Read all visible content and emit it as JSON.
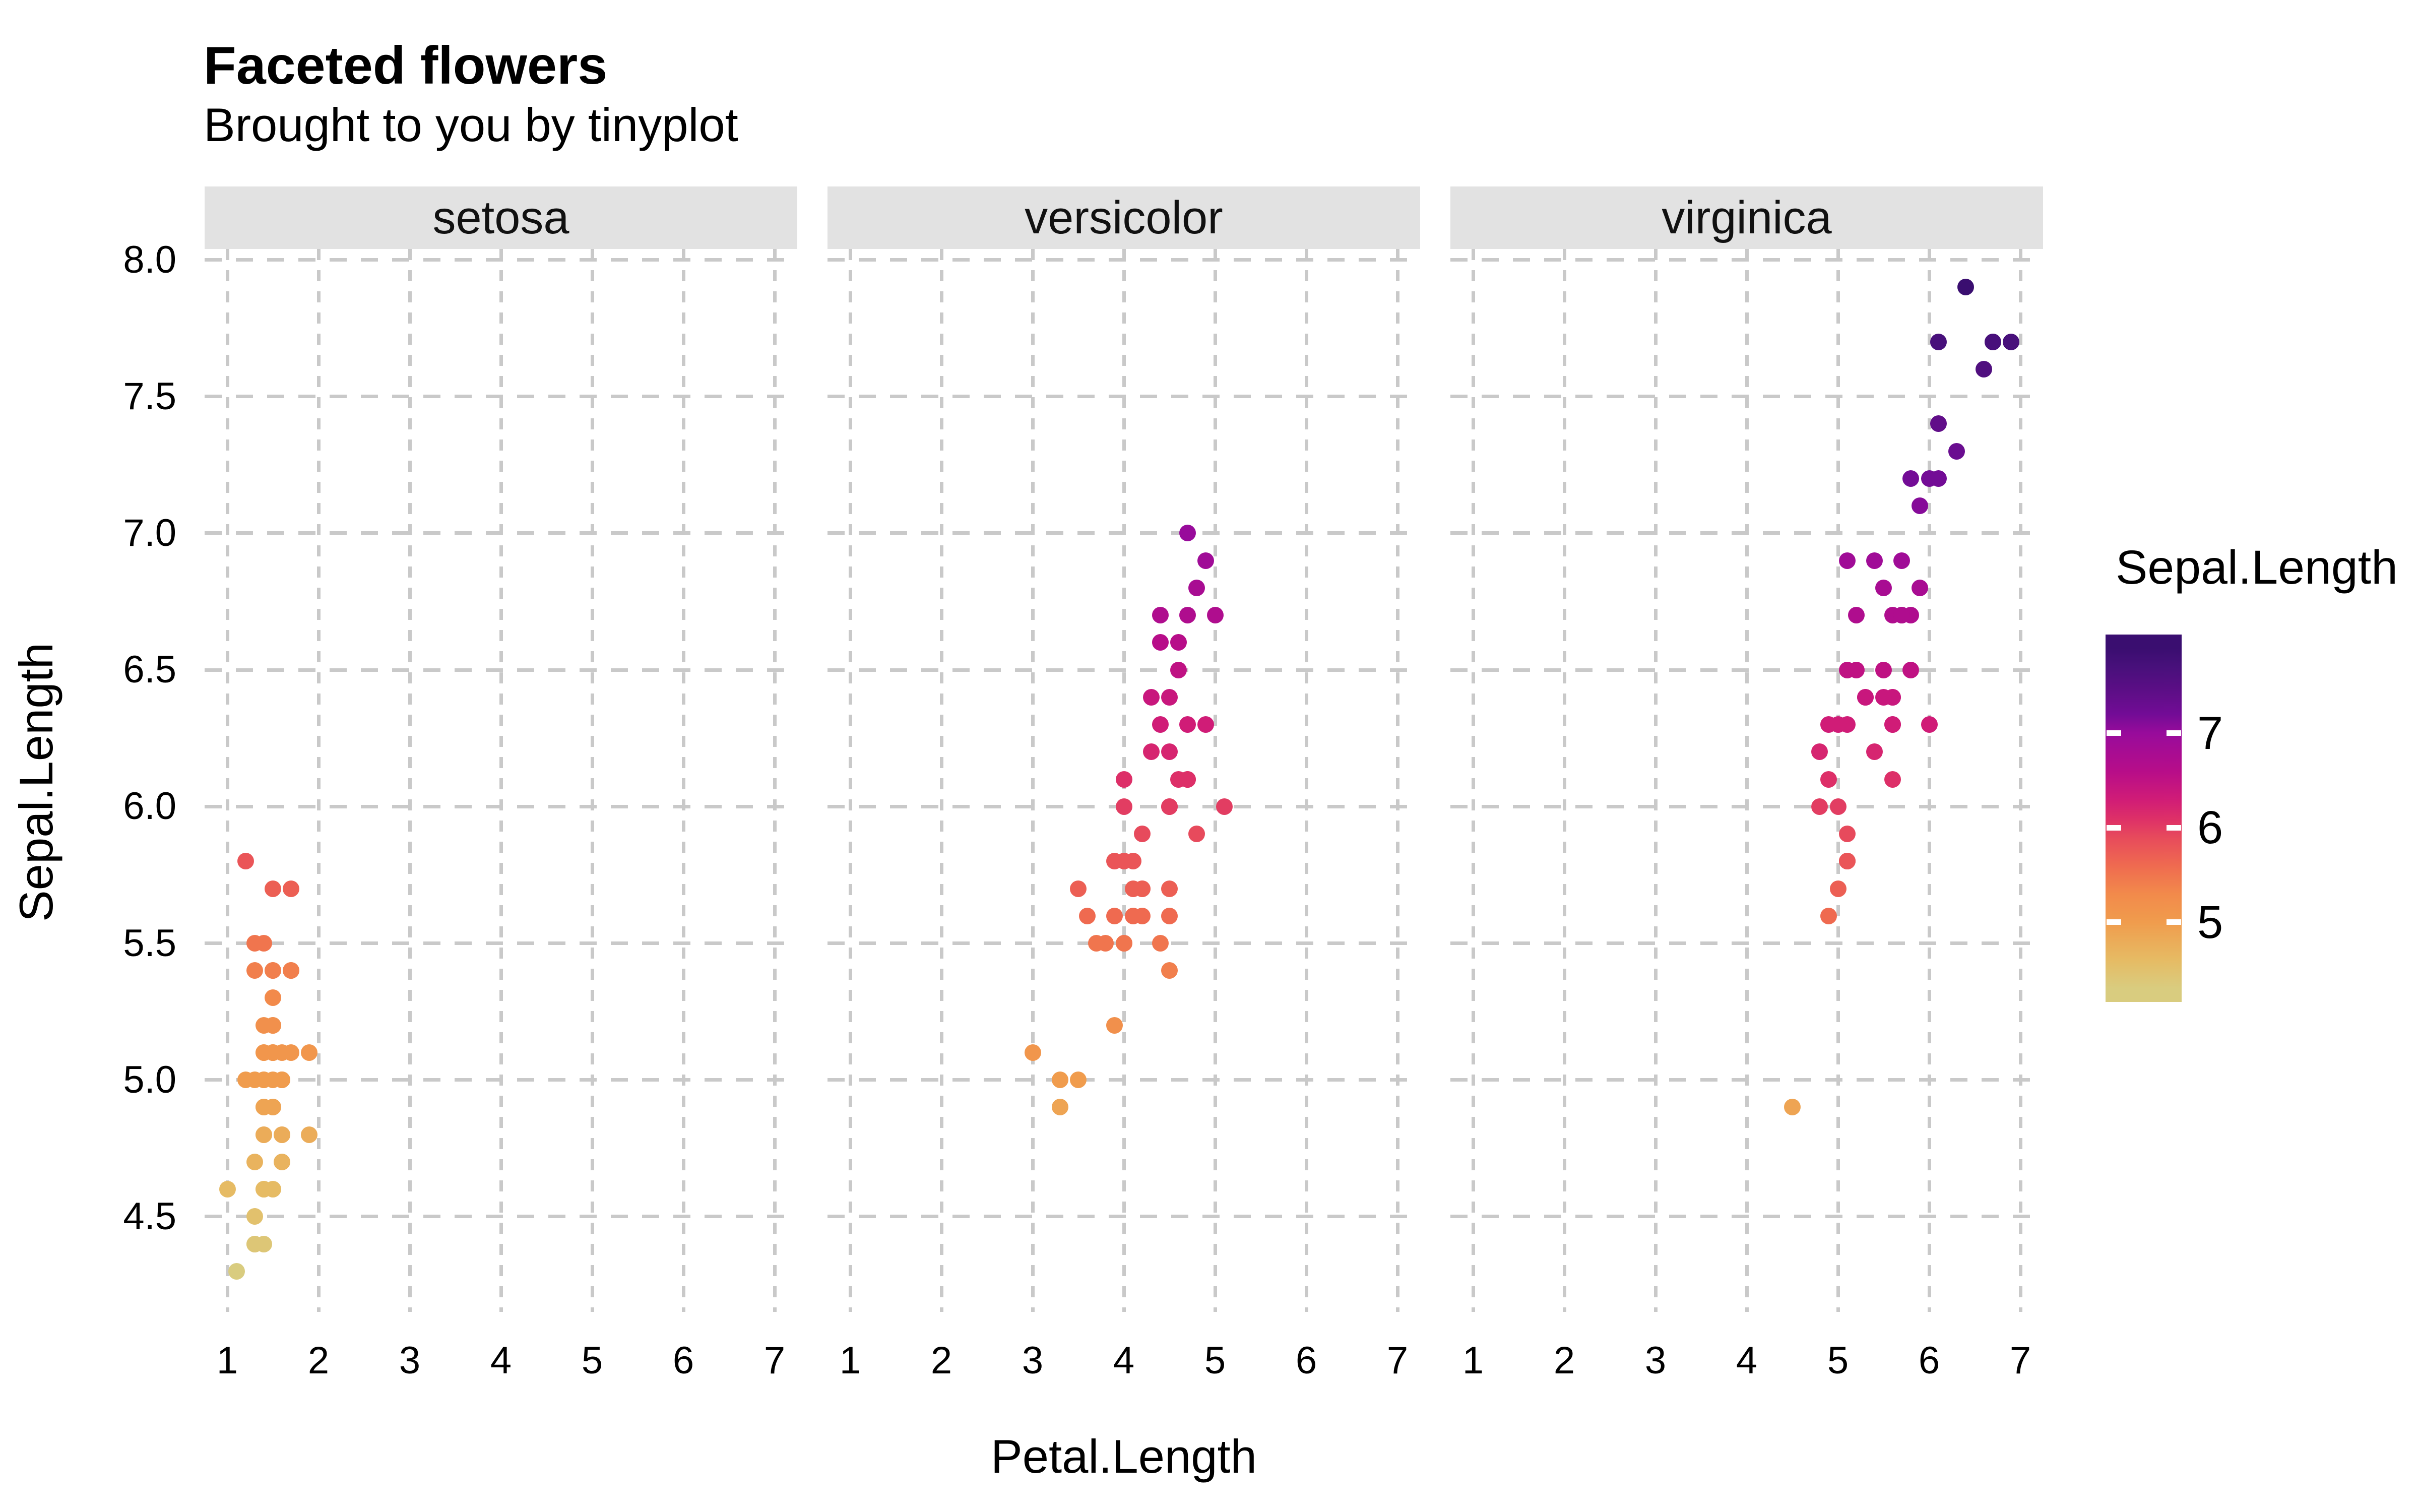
{
  "chart_data": {
    "type": "scatter",
    "title": "Faceted flowers",
    "subtitle": "Brought to you by tinyplot",
    "xlabel": "Petal.Length",
    "ylabel": "Sepal.Length",
    "facets": [
      "setosa",
      "versicolor",
      "virginica"
    ],
    "x_ticks": [
      1,
      2,
      3,
      4,
      5,
      6,
      7
    ],
    "y_ticks": [
      4.5,
      5.0,
      5.5,
      6.0,
      6.5,
      7.0,
      7.5,
      8.0
    ],
    "x_domain": [
      0.75,
      7.25
    ],
    "y_domain": [
      4.156,
      8.044
    ],
    "grid": true,
    "legend": {
      "title": "Sepal.Length",
      "ticks": [
        7,
        6,
        5
      ],
      "position": "right",
      "bar_range": [
        4.156,
        8.044
      ]
    },
    "colors": {
      "background": "#ffffff",
      "grid": "#c9c9c9",
      "strip_bg": "#e2e2e2",
      "text": "#000000"
    },
    "colormap": [
      [
        4.3,
        "#d9cc7f"
      ],
      [
        4.6,
        "#e6bb64"
      ],
      [
        5.0,
        "#f09c4d"
      ],
      [
        5.3,
        "#f28a4b"
      ],
      [
        5.6,
        "#ef6a50"
      ],
      [
        5.9,
        "#e74a5c"
      ],
      [
        6.1,
        "#dd2f68"
      ],
      [
        6.3,
        "#d01c77"
      ],
      [
        6.6,
        "#b70d89"
      ],
      [
        6.9,
        "#a00c97"
      ],
      [
        7.0,
        "#980b9b"
      ],
      [
        7.2,
        "#730c96"
      ],
      [
        7.45,
        "#5c0e86"
      ],
      [
        7.7,
        "#48107b"
      ],
      [
        7.9,
        "#3a0e70"
      ]
    ],
    "series": [
      {
        "name": "setosa",
        "points": [
          [
            1.4,
            5.1
          ],
          [
            1.4,
            4.9
          ],
          [
            1.3,
            4.7
          ],
          [
            1.5,
            4.6
          ],
          [
            1.4,
            5.0
          ],
          [
            1.7,
            5.4
          ],
          [
            1.4,
            4.6
          ],
          [
            1.5,
            5.0
          ],
          [
            1.4,
            4.4
          ],
          [
            1.5,
            4.9
          ],
          [
            1.5,
            5.4
          ],
          [
            1.6,
            4.8
          ],
          [
            1.4,
            4.8
          ],
          [
            1.1,
            4.3
          ],
          [
            1.2,
            5.8
          ],
          [
            1.5,
            5.7
          ],
          [
            1.3,
            5.4
          ],
          [
            1.4,
            5.1
          ],
          [
            1.7,
            5.7
          ],
          [
            1.5,
            5.1
          ],
          [
            1.7,
            5.4
          ],
          [
            1.5,
            5.1
          ],
          [
            1.0,
            4.6
          ],
          [
            1.7,
            5.1
          ],
          [
            1.9,
            4.8
          ],
          [
            1.6,
            5.0
          ],
          [
            1.6,
            5.0
          ],
          [
            1.5,
            5.2
          ],
          [
            1.4,
            5.2
          ],
          [
            1.6,
            4.7
          ],
          [
            1.6,
            4.8
          ],
          [
            1.5,
            5.4
          ],
          [
            1.5,
            5.2
          ],
          [
            1.4,
            5.5
          ],
          [
            1.5,
            4.9
          ],
          [
            1.2,
            5.0
          ],
          [
            1.3,
            5.5
          ],
          [
            1.4,
            4.9
          ],
          [
            1.3,
            4.4
          ],
          [
            1.5,
            5.1
          ],
          [
            1.3,
            5.0
          ],
          [
            1.3,
            4.5
          ],
          [
            1.3,
            4.4
          ],
          [
            1.6,
            5.0
          ],
          [
            1.9,
            5.1
          ],
          [
            1.4,
            4.8
          ],
          [
            1.6,
            5.1
          ],
          [
            1.4,
            4.6
          ],
          [
            1.5,
            5.3
          ],
          [
            1.4,
            5.0
          ]
        ]
      },
      {
        "name": "versicolor",
        "points": [
          [
            4.7,
            7.0
          ],
          [
            4.5,
            6.4
          ],
          [
            4.9,
            6.9
          ],
          [
            4.0,
            5.5
          ],
          [
            4.6,
            6.5
          ],
          [
            4.5,
            5.7
          ],
          [
            4.7,
            6.3
          ],
          [
            3.3,
            4.9
          ],
          [
            4.6,
            6.6
          ],
          [
            3.9,
            5.2
          ],
          [
            3.5,
            5.0
          ],
          [
            4.2,
            5.9
          ],
          [
            4.0,
            6.0
          ],
          [
            4.7,
            6.1
          ],
          [
            3.6,
            5.6
          ],
          [
            4.4,
            6.7
          ],
          [
            4.5,
            5.6
          ],
          [
            4.1,
            5.8
          ],
          [
            4.5,
            6.2
          ],
          [
            3.9,
            5.6
          ],
          [
            4.8,
            5.9
          ],
          [
            4.0,
            6.1
          ],
          [
            4.9,
            6.3
          ],
          [
            4.7,
            6.1
          ],
          [
            4.3,
            6.4
          ],
          [
            4.4,
            6.6
          ],
          [
            4.8,
            6.8
          ],
          [
            5.0,
            6.7
          ],
          [
            4.5,
            6.0
          ],
          [
            3.5,
            5.7
          ],
          [
            3.8,
            5.5
          ],
          [
            3.7,
            5.5
          ],
          [
            3.9,
            5.8
          ],
          [
            5.1,
            6.0
          ],
          [
            4.5,
            5.4
          ],
          [
            4.5,
            6.0
          ],
          [
            4.7,
            6.7
          ],
          [
            4.4,
            6.3
          ],
          [
            4.1,
            5.6
          ],
          [
            4.0,
            5.5
          ],
          [
            4.4,
            5.5
          ],
          [
            4.6,
            6.1
          ],
          [
            4.0,
            5.8
          ],
          [
            3.3,
            5.0
          ],
          [
            4.2,
            5.6
          ],
          [
            4.2,
            5.7
          ],
          [
            4.2,
            5.7
          ],
          [
            4.3,
            6.2
          ],
          [
            3.0,
            5.1
          ],
          [
            4.1,
            5.7
          ]
        ]
      },
      {
        "name": "virginica",
        "points": [
          [
            6.0,
            6.3
          ],
          [
            5.1,
            5.8
          ],
          [
            5.9,
            7.1
          ],
          [
            5.6,
            6.3
          ],
          [
            5.8,
            6.5
          ],
          [
            6.6,
            7.6
          ],
          [
            4.5,
            4.9
          ],
          [
            6.3,
            7.3
          ],
          [
            5.8,
            6.7
          ],
          [
            6.1,
            7.2
          ],
          [
            5.1,
            6.5
          ],
          [
            5.3,
            6.4
          ],
          [
            5.5,
            6.8
          ],
          [
            5.0,
            5.7
          ],
          [
            5.1,
            5.8
          ],
          [
            5.3,
            6.4
          ],
          [
            5.5,
            6.5
          ],
          [
            6.7,
            7.7
          ],
          [
            6.9,
            7.7
          ],
          [
            5.0,
            6.0
          ],
          [
            5.7,
            6.9
          ],
          [
            4.9,
            5.6
          ],
          [
            6.7,
            7.7
          ],
          [
            4.9,
            6.3
          ],
          [
            5.7,
            6.7
          ],
          [
            6.0,
            7.2
          ],
          [
            4.8,
            6.2
          ],
          [
            4.9,
            6.1
          ],
          [
            5.6,
            6.4
          ],
          [
            5.8,
            7.2
          ],
          [
            6.1,
            7.4
          ],
          [
            6.4,
            7.9
          ],
          [
            5.6,
            6.4
          ],
          [
            5.1,
            6.3
          ],
          [
            5.6,
            6.1
          ],
          [
            6.1,
            7.7
          ],
          [
            5.6,
            6.3
          ],
          [
            5.5,
            6.4
          ],
          [
            4.8,
            6.0
          ],
          [
            5.4,
            6.9
          ],
          [
            5.6,
            6.7
          ],
          [
            5.1,
            6.9
          ],
          [
            5.1,
            5.8
          ],
          [
            5.9,
            6.8
          ],
          [
            5.7,
            6.7
          ],
          [
            5.2,
            6.7
          ],
          [
            5.0,
            6.3
          ],
          [
            5.2,
            6.5
          ],
          [
            5.4,
            6.2
          ],
          [
            5.1,
            5.9
          ]
        ]
      }
    ]
  }
}
